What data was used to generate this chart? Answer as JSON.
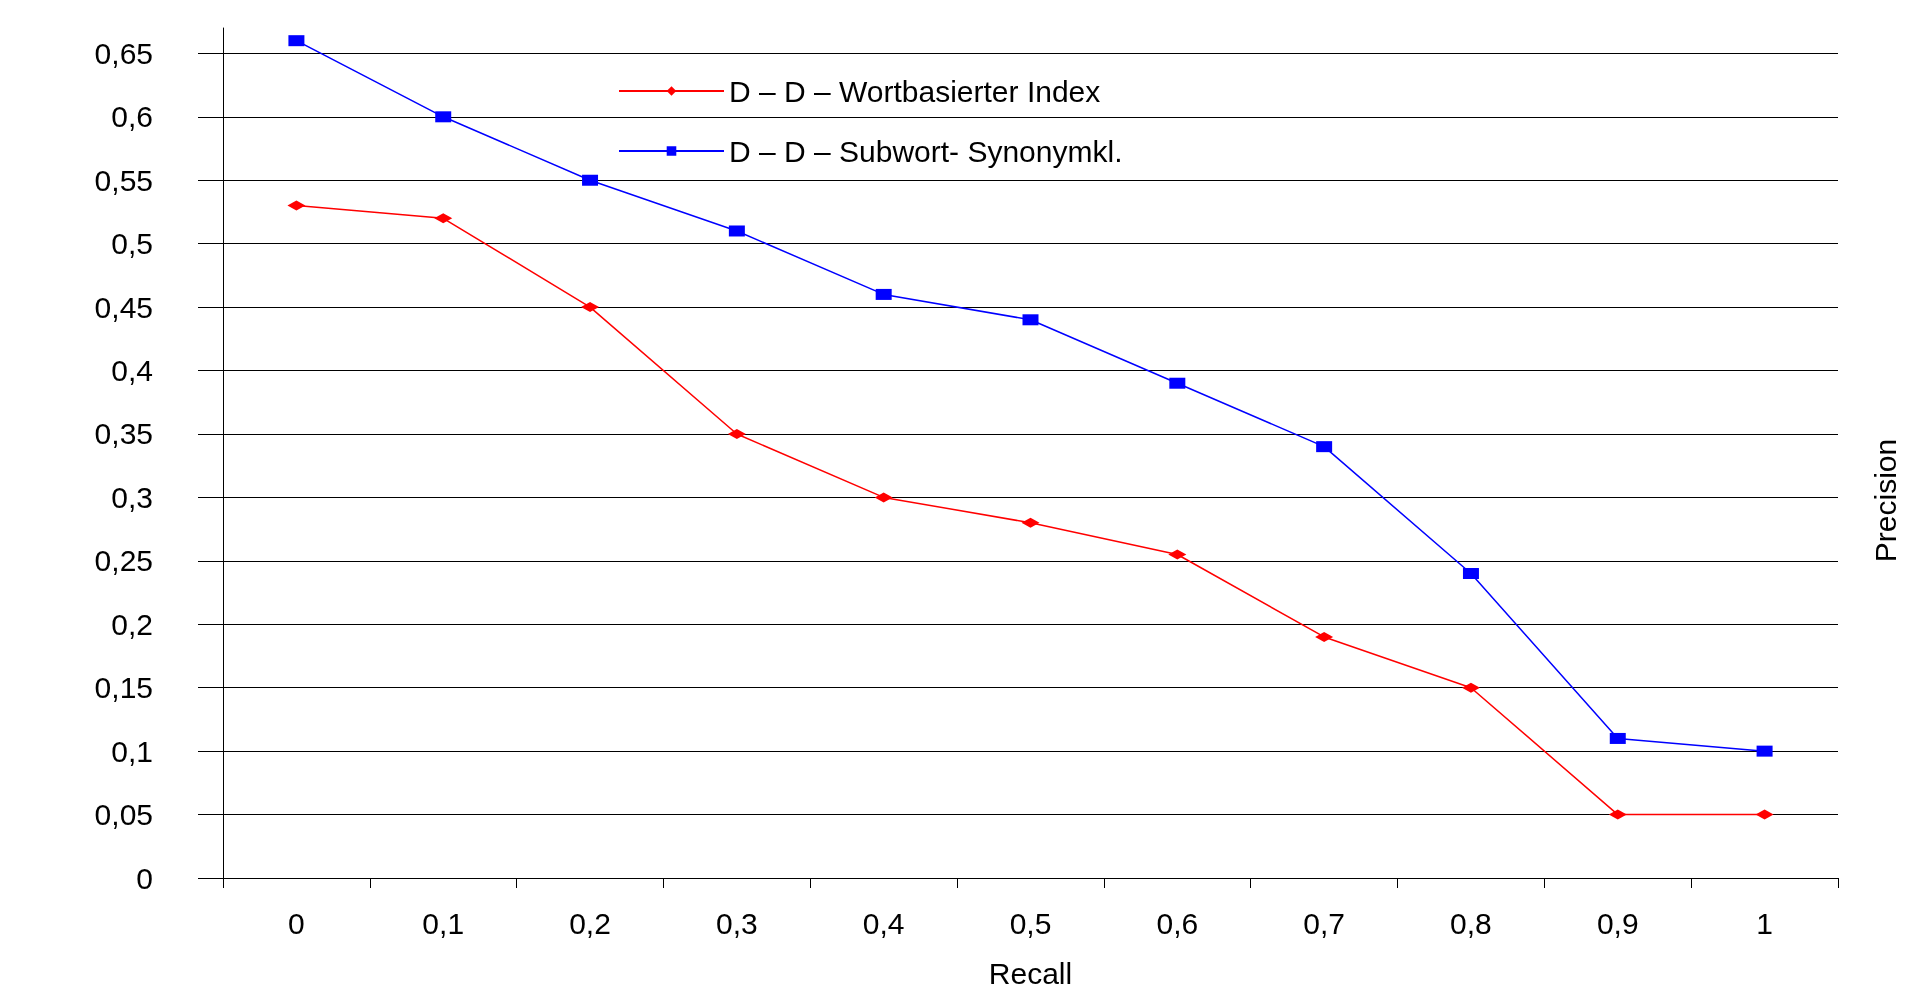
{
  "chart_data": {
    "type": "line",
    "xlabel": "Recall",
    "ylabel": "Precision",
    "categories": [
      "0",
      "0,1",
      "0,2",
      "0,3",
      "0,4",
      "0,5",
      "0,6",
      "0,7",
      "0,8",
      "0,9",
      "1"
    ],
    "series": [
      {
        "name": "D – D – Wortbasierter Index",
        "color": "#ff0000",
        "marker": "diamond",
        "values": [
          0.53,
          0.52,
          0.45,
          0.35,
          0.3,
          0.28,
          0.255,
          0.19,
          0.15,
          0.05,
          0.05
        ]
      },
      {
        "name": "D – D – Subwort- Synonymkl.",
        "color": "#0000ff",
        "marker": "square",
        "values": [
          0.66,
          0.6,
          0.55,
          0.51,
          0.46,
          0.44,
          0.39,
          0.34,
          0.24,
          0.11,
          0.1
        ]
      }
    ],
    "ylim": [
      0,
      0.67
    ],
    "yticks": [
      {
        "value": 0,
        "label": "0"
      },
      {
        "value": 0.05,
        "label": "0,05"
      },
      {
        "value": 0.1,
        "label": "0,1"
      },
      {
        "value": 0.15,
        "label": "0,15"
      },
      {
        "value": 0.2,
        "label": "0,2"
      },
      {
        "value": 0.25,
        "label": "0,25"
      },
      {
        "value": 0.3,
        "label": "0,3"
      },
      {
        "value": 0.35,
        "label": "0,35"
      },
      {
        "value": 0.4,
        "label": "0,4"
      },
      {
        "value": 0.45,
        "label": "0,45"
      },
      {
        "value": 0.5,
        "label": "0,5"
      },
      {
        "value": 0.55,
        "label": "0,55"
      },
      {
        "value": 0.6,
        "label": "0,6"
      },
      {
        "value": 0.65,
        "label": "0,65"
      }
    ],
    "grid": "y",
    "legend": "top",
    "line_style": "solid"
  }
}
